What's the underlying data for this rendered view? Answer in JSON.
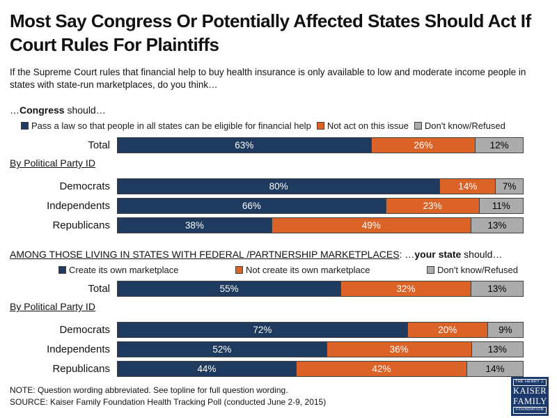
{
  "title": "Most Say Congress Or Potentially Affected States Should Act If Court Rules For Plaintiffs",
  "subtitle": "If the Supreme Court rules that financial help to buy health insurance is only available to low and moderate income people in states with state-run marketplaces, do you think…",
  "colors": {
    "segments": [
      "#1e3a5f",
      "#dc6328",
      "#ababab"
    ],
    "segment_text": [
      "#ffffff",
      "#ffffff",
      "#000000"
    ],
    "segment_border": "#404040",
    "logo_bg": "#1b3a6b"
  },
  "sections": [
    {
      "heading": {
        "prefix": "…",
        "bold": "Congress",
        "suffix": " should…"
      },
      "legend": [
        "Pass a law so that people in all states can be eligible for financial help",
        "Not act on this issue",
        "Don't know/Refused"
      ],
      "group_label": "By Political Party ID",
      "rows": [
        {
          "label": "Total",
          "values": [
            63,
            26,
            12
          ]
        },
        {
          "label": "Democrats",
          "values": [
            80,
            14,
            7
          ]
        },
        {
          "label": "Independents",
          "values": [
            66,
            23,
            11
          ]
        },
        {
          "label": "Republicans",
          "values": [
            38,
            49,
            13
          ]
        }
      ]
    },
    {
      "heading": {
        "underlined": "AMONG THOSE LIVING IN STATES WITH FEDERAL /PARTNERSHIP MARKETPLACES",
        "colon": ": ",
        "prefix": "…",
        "bold": "your state",
        "suffix": " should…"
      },
      "legend": [
        "Create its own marketplace",
        "Not create its own marketplace",
        "Don't know/Refused"
      ],
      "group_label": "By Political Party ID",
      "rows": [
        {
          "label": "Total",
          "values": [
            55,
            32,
            13
          ]
        },
        {
          "label": "Democrats",
          "values": [
            72,
            20,
            9
          ]
        },
        {
          "label": "Independents",
          "values": [
            52,
            36,
            13
          ]
        },
        {
          "label": "Republicans",
          "values": [
            44,
            42,
            14
          ]
        }
      ]
    }
  ],
  "note": "NOTE: Question wording abbreviated.  See topline for full question wording.",
  "source": "SOURCE: Kaiser Family Foundation Health Tracking Poll (conducted June 2-9, 2015)",
  "logo": {
    "line1": "THE HENRY J.",
    "line2": "KAISER",
    "line3": "FAMILY",
    "line4": "FOUNDATION"
  },
  "chart_data": [
    {
      "type": "bar",
      "orientation": "horizontal",
      "stacked": true,
      "title": "…Congress should…",
      "categories": [
        "Total",
        "Democrats",
        "Independents",
        "Republicans"
      ],
      "series": [
        {
          "name": "Pass a law so that people in all states can be eligible for financial help",
          "color": "#1e3a5f",
          "values": [
            63,
            80,
            66,
            38
          ]
        },
        {
          "name": "Not act on this issue",
          "color": "#dc6328",
          "values": [
            26,
            14,
            23,
            49
          ]
        },
        {
          "name": "Don't know/Refused",
          "color": "#ababab",
          "values": [
            12,
            7,
            11,
            13
          ]
        }
      ],
      "value_format": "percent",
      "legend_position": "top",
      "grid": false
    },
    {
      "type": "bar",
      "orientation": "horizontal",
      "stacked": true,
      "title": "AMONG THOSE LIVING IN STATES WITH FEDERAL /PARTNERSHIP MARKETPLACES: …your state should…",
      "categories": [
        "Total",
        "Democrats",
        "Independents",
        "Republicans"
      ],
      "series": [
        {
          "name": "Create its own marketplace",
          "color": "#1e3a5f",
          "values": [
            55,
            72,
            52,
            44
          ]
        },
        {
          "name": "Not create its own marketplace",
          "color": "#dc6328",
          "values": [
            32,
            20,
            36,
            42
          ]
        },
        {
          "name": "Don't know/Refused",
          "color": "#ababab",
          "values": [
            13,
            9,
            13,
            14
          ]
        }
      ],
      "value_format": "percent",
      "legend_position": "top",
      "grid": false
    }
  ]
}
